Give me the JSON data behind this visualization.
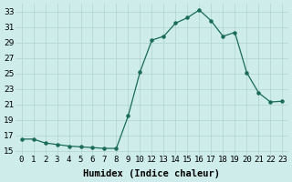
{
  "x": [
    0,
    1,
    2,
    3,
    4,
    5,
    6,
    7,
    8,
    9,
    10,
    11,
    12,
    13,
    14,
    15,
    16,
    17,
    18,
    19,
    20,
    21,
    22
  ],
  "y": [
    16.5,
    16.5,
    16.0,
    15.8,
    15.6,
    15.5,
    15.4,
    15.3,
    15.3,
    19.5,
    25.2,
    29.3,
    29.8,
    31.5,
    32.2,
    33.2,
    31.8,
    29.8,
    30.3,
    25.1,
    22.5,
    21.3,
    21.4
  ],
  "xtick_labels": [
    "0",
    "1",
    "2",
    "3",
    "4",
    "5",
    "6",
    "7",
    "8",
    "9",
    "10",
    "12",
    "13",
    "14",
    "15",
    "16",
    "17",
    "18",
    "19",
    "20",
    "21",
    "22",
    "23"
  ],
  "line_color": "#1a6b5a",
  "marker_color": "#1a6b5a",
  "bg_color": "#cdecea",
  "grid_color": "#b0d4d0",
  "xlabel": "Humidex (Indice chaleur)",
  "xlim": [
    -0.5,
    22.5
  ],
  "ylim": [
    14.5,
    34.0
  ],
  "yticks": [
    15,
    17,
    19,
    21,
    23,
    25,
    27,
    29,
    31,
    33
  ],
  "xlabel_fontsize": 7.5,
  "tick_fontsize": 6.5
}
